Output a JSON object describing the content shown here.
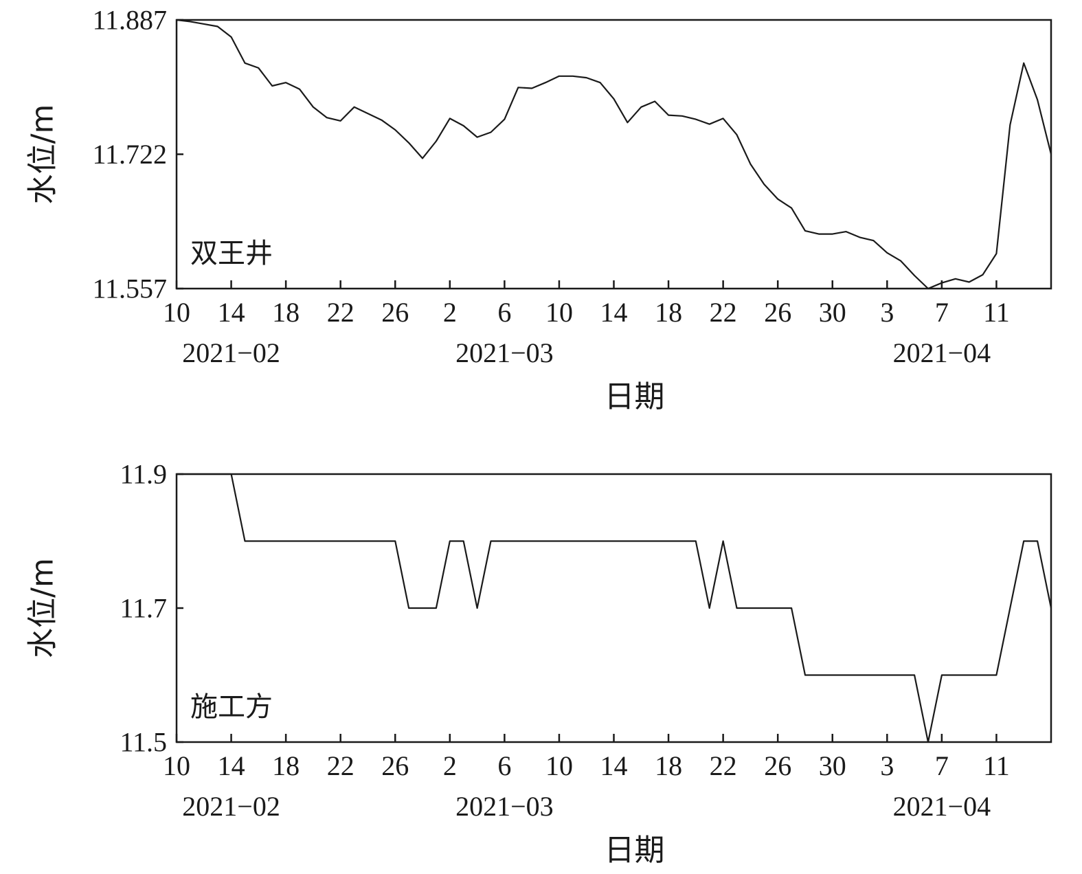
{
  "chart_data": [
    {
      "type": "line",
      "annotation": "双王井",
      "xlabel": "日期",
      "ylabel": "水位/m",
      "ylim": [
        11.557,
        11.887
      ],
      "yticks": [
        "11.887",
        "11.722",
        "11.557"
      ],
      "xlim": [
        "2021-02-10",
        "2021-04-15"
      ],
      "xticks": [
        {
          "date": "2021-02-10",
          "label": "10"
        },
        {
          "date": "2021-02-14",
          "label": "14"
        },
        {
          "date": "2021-02-18",
          "label": "18"
        },
        {
          "date": "2021-02-22",
          "label": "22"
        },
        {
          "date": "2021-02-26",
          "label": "26"
        },
        {
          "date": "2021-03-02",
          "label": "2"
        },
        {
          "date": "2021-03-06",
          "label": "6"
        },
        {
          "date": "2021-03-10",
          "label": "10"
        },
        {
          "date": "2021-03-14",
          "label": "14"
        },
        {
          "date": "2021-03-18",
          "label": "18"
        },
        {
          "date": "2021-03-22",
          "label": "22"
        },
        {
          "date": "2021-03-26",
          "label": "26"
        },
        {
          "date": "2021-03-30",
          "label": "30"
        },
        {
          "date": "2021-04-03",
          "label": "3"
        },
        {
          "date": "2021-04-07",
          "label": "7"
        },
        {
          "date": "2021-04-11",
          "label": "11"
        }
      ],
      "months": [
        {
          "date": "2021-02-14",
          "label": "2021−02"
        },
        {
          "date": "2021-03-06",
          "label": "2021−03"
        },
        {
          "date": "2021-04-07",
          "label": "2021−04"
        }
      ],
      "series": [
        {
          "x": [
            "2021-02-10",
            "2021-02-11",
            "2021-02-12",
            "2021-02-13",
            "2021-02-14",
            "2021-02-15",
            "2021-02-16",
            "2021-02-17",
            "2021-02-18",
            "2021-02-19",
            "2021-02-20",
            "2021-02-21",
            "2021-02-22",
            "2021-02-23",
            "2021-02-24",
            "2021-02-25",
            "2021-02-26",
            "2021-02-27",
            "2021-02-28",
            "2021-03-01",
            "2021-03-02",
            "2021-03-03",
            "2021-03-04",
            "2021-03-05",
            "2021-03-06",
            "2021-03-07",
            "2021-03-08",
            "2021-03-09",
            "2021-03-10",
            "2021-03-11",
            "2021-03-12",
            "2021-03-13",
            "2021-03-14",
            "2021-03-15",
            "2021-03-16",
            "2021-03-17",
            "2021-03-18",
            "2021-03-19",
            "2021-03-20",
            "2021-03-21",
            "2021-03-22",
            "2021-03-23",
            "2021-03-24",
            "2021-03-25",
            "2021-03-26",
            "2021-03-27",
            "2021-03-28",
            "2021-03-29",
            "2021-03-30",
            "2021-03-31",
            "2021-04-01",
            "2021-04-02",
            "2021-04-03",
            "2021-04-04",
            "2021-04-05",
            "2021-04-06",
            "2021-04-07",
            "2021-04-08",
            "2021-04-09",
            "2021-04-10",
            "2021-04-11",
            "2021-04-12",
            "2021-04-13",
            "2021-04-14",
            "2021-04-15"
          ],
          "values": [
            11.887,
            11.885,
            11.882,
            11.879,
            11.866,
            11.834,
            11.828,
            11.806,
            11.81,
            11.802,
            11.78,
            11.767,
            11.763,
            11.78,
            11.772,
            11.764,
            11.752,
            11.736,
            11.717,
            11.738,
            11.766,
            11.757,
            11.743,
            11.749,
            11.765,
            11.804,
            11.803,
            11.81,
            11.818,
            11.818,
            11.816,
            11.81,
            11.79,
            11.761,
            11.78,
            11.787,
            11.77,
            11.769,
            11.765,
            11.759,
            11.766,
            11.746,
            11.71,
            11.685,
            11.667,
            11.656,
            11.628,
            11.624,
            11.624,
            11.627,
            11.62,
            11.616,
            11.601,
            11.591,
            11.573,
            11.557,
            11.564,
            11.569,
            11.565,
            11.574,
            11.6,
            11.758,
            11.834,
            11.789,
            11.722
          ]
        }
      ]
    },
    {
      "type": "line",
      "annotation": "施工方",
      "xlabel": "日期",
      "ylabel": "水位/m",
      "ylim": [
        11.5,
        11.9
      ],
      "yticks": [
        "11.9",
        "11.7",
        "11.5"
      ],
      "xlim": [
        "2021-02-10",
        "2021-04-15"
      ],
      "xticks": [
        {
          "date": "2021-02-10",
          "label": "10"
        },
        {
          "date": "2021-02-14",
          "label": "14"
        },
        {
          "date": "2021-02-18",
          "label": "18"
        },
        {
          "date": "2021-02-22",
          "label": "22"
        },
        {
          "date": "2021-02-26",
          "label": "26"
        },
        {
          "date": "2021-03-02",
          "label": "2"
        },
        {
          "date": "2021-03-06",
          "label": "6"
        },
        {
          "date": "2021-03-10",
          "label": "10"
        },
        {
          "date": "2021-03-14",
          "label": "14"
        },
        {
          "date": "2021-03-18",
          "label": "18"
        },
        {
          "date": "2021-03-22",
          "label": "22"
        },
        {
          "date": "2021-03-26",
          "label": "26"
        },
        {
          "date": "2021-03-30",
          "label": "30"
        },
        {
          "date": "2021-04-03",
          "label": "3"
        },
        {
          "date": "2021-04-07",
          "label": "7"
        },
        {
          "date": "2021-04-11",
          "label": "11"
        }
      ],
      "months": [
        {
          "date": "2021-02-14",
          "label": "2021−02"
        },
        {
          "date": "2021-03-06",
          "label": "2021−03"
        },
        {
          "date": "2021-04-07",
          "label": "2021−04"
        }
      ],
      "series": [
        {
          "x": [
            "2021-02-10",
            "2021-02-11",
            "2021-02-12",
            "2021-02-13",
            "2021-02-14",
            "2021-02-15",
            "2021-02-16",
            "2021-02-17",
            "2021-02-18",
            "2021-02-19",
            "2021-02-20",
            "2021-02-21",
            "2021-02-22",
            "2021-02-23",
            "2021-02-24",
            "2021-02-25",
            "2021-02-26",
            "2021-02-27",
            "2021-02-28",
            "2021-03-01",
            "2021-03-02",
            "2021-03-03",
            "2021-03-04",
            "2021-03-05",
            "2021-03-06",
            "2021-03-07",
            "2021-03-08",
            "2021-03-09",
            "2021-03-10",
            "2021-03-11",
            "2021-03-12",
            "2021-03-13",
            "2021-03-14",
            "2021-03-15",
            "2021-03-16",
            "2021-03-17",
            "2021-03-18",
            "2021-03-19",
            "2021-03-20",
            "2021-03-21",
            "2021-03-22",
            "2021-03-23",
            "2021-03-24",
            "2021-03-25",
            "2021-03-26",
            "2021-03-27",
            "2021-03-28",
            "2021-03-29",
            "2021-03-30",
            "2021-03-31",
            "2021-04-01",
            "2021-04-02",
            "2021-04-03",
            "2021-04-04",
            "2021-04-05",
            "2021-04-06",
            "2021-04-07",
            "2021-04-08",
            "2021-04-09",
            "2021-04-10",
            "2021-04-11",
            "2021-04-12",
            "2021-04-13",
            "2021-04-14",
            "2021-04-15"
          ],
          "values": [
            11.9,
            11.9,
            11.9,
            11.9,
            11.9,
            11.8,
            11.8,
            11.8,
            11.8,
            11.8,
            11.8,
            11.8,
            11.8,
            11.8,
            11.8,
            11.8,
            11.8,
            11.7,
            11.7,
            11.7,
            11.8,
            11.8,
            11.7,
            11.8,
            11.8,
            11.8,
            11.8,
            11.8,
            11.8,
            11.8,
            11.8,
            11.8,
            11.8,
            11.8,
            11.8,
            11.8,
            11.8,
            11.8,
            11.8,
            11.7,
            11.8,
            11.7,
            11.7,
            11.7,
            11.7,
            11.7,
            11.6,
            11.6,
            11.6,
            11.6,
            11.6,
            11.6,
            11.6,
            11.6,
            11.6,
            11.5,
            11.6,
            11.6,
            11.6,
            11.6,
            11.6,
            11.7,
            11.8,
            11.8,
            11.7
          ]
        }
      ]
    }
  ]
}
